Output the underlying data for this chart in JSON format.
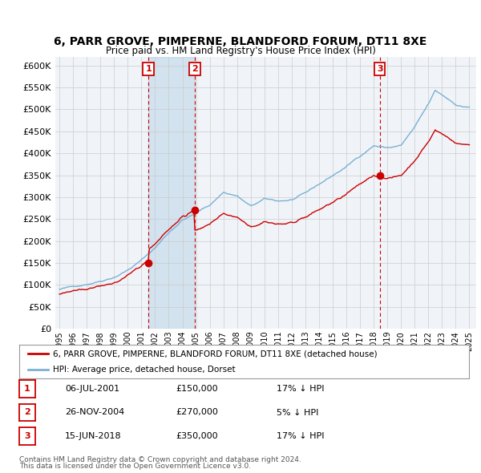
{
  "title": "6, PARR GROVE, PIMPERNE, BLANDFORD FORUM, DT11 8XE",
  "subtitle": "Price paid vs. HM Land Registry's House Price Index (HPI)",
  "sales": [
    {
      "label": "1",
      "year": 2001.51,
      "price": 150000,
      "date": "06-JUL-2001",
      "pct": "17%"
    },
    {
      "label": "2",
      "year": 2004.9,
      "price": 270000,
      "date": "26-NOV-2004",
      "pct": "5%"
    },
    {
      "label": "3",
      "year": 2018.45,
      "price": 350000,
      "date": "15-JUN-2018",
      "pct": "17%"
    }
  ],
  "legend_line1": "6, PARR GROVE, PIMPERNE, BLANDFORD FORUM, DT11 8XE (detached house)",
  "legend_line2": "HPI: Average price, detached house, Dorset",
  "footer1": "Contains HM Land Registry data © Crown copyright and database right 2024.",
  "footer2": "This data is licensed under the Open Government Licence v3.0.",
  "ylim": [
    0,
    620000
  ],
  "yticks": [
    0,
    50000,
    100000,
    150000,
    200000,
    250000,
    300000,
    350000,
    400000,
    450000,
    500000,
    550000,
    600000
  ],
  "red_color": "#cc0000",
  "blue_color": "#7ab0d4",
  "blue_fill": "#ddeeff",
  "bg_color": "#f0f4f8",
  "grid_color": "#cccccc"
}
